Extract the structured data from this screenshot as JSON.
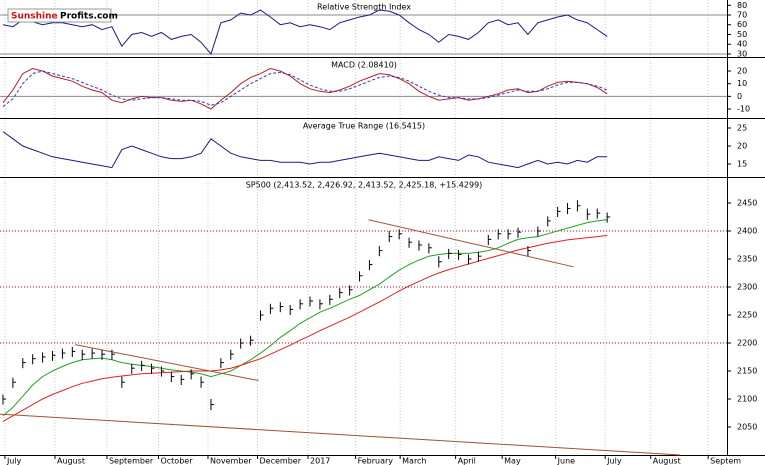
{
  "logo": [
    "Sunshine",
    "Profits.com"
  ],
  "chart_data": [
    {
      "type": "line",
      "title": "Relative Strength Index",
      "ylim": [
        26.9,
        85.4
      ],
      "yticks": [
        80,
        70,
        60,
        50,
        40,
        30
      ],
      "reference_lines": [
        70,
        30
      ],
      "series": [
        {
          "color": "#1a1a8c",
          "values": [
            60,
            58,
            65,
            63,
            60,
            62,
            62,
            60,
            58,
            60,
            55,
            58,
            38,
            50,
            52,
            48,
            52,
            45,
            48,
            50,
            42,
            30,
            62,
            65,
            72,
            70,
            75,
            68,
            60,
            62,
            58,
            60,
            58,
            55,
            62,
            65,
            68,
            70,
            75,
            74,
            70,
            62,
            55,
            50,
            42,
            50,
            48,
            45,
            52,
            62,
            65,
            60,
            62,
            50,
            62,
            65,
            68,
            70,
            65,
            62,
            55,
            48
          ]
        }
      ]
    },
    {
      "type": "line",
      "title": "MACD (2.08410)",
      "ylim": [
        -17.1,
        30.3
      ],
      "yticks": [
        20,
        10,
        0,
        -10
      ],
      "reference_lines": [
        0
      ],
      "series": [
        {
          "color": "#b22222",
          "values": [
            -5,
            5,
            18,
            22,
            20,
            16,
            14,
            12,
            8,
            5,
            3,
            -3,
            -5,
            -2,
            0,
            -1,
            -1,
            -3,
            -4,
            -3,
            -6,
            -10,
            -3,
            3,
            10,
            15,
            18,
            22,
            20,
            16,
            10,
            6,
            4,
            3,
            5,
            8,
            12,
            15,
            18,
            17,
            14,
            10,
            4,
            0,
            -3,
            -2,
            -1,
            -3,
            -2,
            0,
            2,
            5,
            6,
            3,
            4,
            8,
            11,
            12,
            11,
            10,
            7,
            2
          ]
        },
        {
          "color": "#3333cc",
          "dashed": true,
          "values": [
            -8,
            -2,
            10,
            18,
            20,
            18,
            16,
            14,
            11,
            8,
            5,
            1,
            -2,
            -3,
            -2,
            -1,
            -1,
            -2,
            -3,
            -3,
            -4,
            -7,
            -5,
            0,
            5,
            10,
            14,
            18,
            19,
            17,
            13,
            9,
            6,
            4,
            4,
            6,
            9,
            12,
            15,
            16,
            15,
            12,
            8,
            4,
            1,
            -1,
            -1,
            -2,
            -2,
            -1,
            1,
            3,
            5,
            4,
            4,
            6,
            9,
            11,
            11,
            10,
            8,
            5
          ]
        }
      ]
    },
    {
      "type": "line",
      "title": "Average True Range (16.5415)",
      "ylim": [
        11.4,
        27.5
      ],
      "yticks": [
        25,
        20,
        15
      ],
      "series": [
        {
          "color": "#1a1a8c",
          "values": [
            24,
            22,
            20,
            19,
            18,
            17,
            16.5,
            16,
            15.5,
            15,
            14.5,
            14,
            19,
            20,
            19,
            18,
            17,
            16.5,
            16.5,
            17,
            18,
            22,
            20,
            18,
            17,
            16.5,
            16,
            16,
            15.5,
            15.5,
            15.5,
            15,
            15.5,
            15.5,
            16,
            16.5,
            17,
            17.5,
            18,
            17.5,
            17,
            16.5,
            16,
            16,
            17,
            16.5,
            16,
            17.5,
            17,
            15.5,
            15,
            14.5,
            14,
            15,
            16,
            15,
            15.5,
            15,
            16,
            15.5,
            17,
            17
          ]
        }
      ]
    },
    {
      "type": "ohlc",
      "title": "SP500 (2,413.52, 2,426.92, 2,413.52, 2,425.18, +15.4299)",
      "ylim": [
        2000,
        2494.6
      ],
      "yticks": [
        2450,
        2400,
        2350,
        2300,
        2250,
        2200,
        2150,
        2100,
        2050
      ],
      "xlim": [
        -0.3,
        73.1
      ],
      "xticks": [
        {
          "value": 0.2,
          "label": "July"
        },
        {
          "value": 5.25,
          "label": "August"
        },
        {
          "value": 10.5,
          "label": "September"
        },
        {
          "value": 15.7,
          "label": "October"
        },
        {
          "value": 20.7,
          "label": "November"
        },
        {
          "value": 25.7,
          "label": "December"
        },
        {
          "value": 30.8,
          "label": "2017"
        },
        {
          "value": 35.6,
          "label": "February"
        },
        {
          "value": 40.1,
          "label": "March"
        },
        {
          "value": 45.7,
          "label": "April"
        },
        {
          "value": 50.4,
          "label": "May"
        },
        {
          "value": 55.8,
          "label": "June"
        },
        {
          "value": 60.8,
          "label": "July"
        },
        {
          "value": 65.4,
          "label": "August"
        },
        {
          "value": 71.2,
          "label": "Septem"
        }
      ],
      "reference_lines": [
        2400,
        2300,
        2200
      ],
      "reference_color": "#c00000",
      "color": "#000000",
      "high": [
        2108,
        2138,
        2173,
        2180,
        2183,
        2186,
        2190,
        2193,
        2188,
        2190,
        2188,
        2188,
        2140,
        2163,
        2168,
        2163,
        2158,
        2148,
        2143,
        2153,
        2140,
        2100,
        2173,
        2188,
        2208,
        2213,
        2258,
        2270,
        2273,
        2268,
        2278,
        2283,
        2278,
        2286,
        2298,
        2303,
        2328,
        2348,
        2373,
        2400,
        2403,
        2388,
        2383,
        2378,
        2355,
        2368,
        2366,
        2358,
        2363,
        2393,
        2403,
        2403,
        2406,
        2373,
        2408,
        2426,
        2443,
        2450,
        2455,
        2440,
        2440,
        2433
      ],
      "low": [
        2090,
        2120,
        2155,
        2162,
        2165,
        2168,
        2172,
        2175,
        2170,
        2172,
        2170,
        2170,
        2120,
        2145,
        2150,
        2145,
        2140,
        2130,
        2125,
        2135,
        2120,
        2080,
        2155,
        2170,
        2190,
        2195,
        2240,
        2252,
        2255,
        2250,
        2260,
        2265,
        2260,
        2268,
        2280,
        2285,
        2310,
        2330,
        2355,
        2380,
        2385,
        2370,
        2365,
        2360,
        2335,
        2350,
        2348,
        2340,
        2345,
        2375,
        2385,
        2385,
        2388,
        2355,
        2390,
        2408,
        2425,
        2430,
        2435,
        2420,
        2422,
        2415
      ],
      "close": [
        2100,
        2130,
        2165,
        2172,
        2175,
        2178,
        2182,
        2185,
        2180,
        2182,
        2180,
        2180,
        2130,
        2155,
        2160,
        2155,
        2150,
        2140,
        2135,
        2145,
        2130,
        2090,
        2165,
        2180,
        2200,
        2205,
        2250,
        2262,
        2265,
        2260,
        2270,
        2275,
        2270,
        2278,
        2290,
        2295,
        2320,
        2340,
        2365,
        2390,
        2395,
        2380,
        2375,
        2370,
        2345,
        2360,
        2358,
        2350,
        2355,
        2385,
        2395,
        2395,
        2398,
        2365,
        2400,
        2418,
        2435,
        2440,
        2445,
        2430,
        2432,
        2425
      ],
      "overlays": [
        {
          "color": "#22a022",
          "values": [
            2070,
            2085,
            2105,
            2125,
            2140,
            2150,
            2158,
            2165,
            2170,
            2172,
            2173,
            2170,
            2165,
            2162,
            2160,
            2158,
            2155,
            2152,
            2150,
            2148,
            2145,
            2140,
            2145,
            2150,
            2160,
            2170,
            2182,
            2195,
            2210,
            2222,
            2235,
            2245,
            2255,
            2262,
            2270,
            2278,
            2285,
            2295,
            2305,
            2318,
            2330,
            2340,
            2348,
            2355,
            2358,
            2360,
            2360,
            2360,
            2362,
            2365,
            2370,
            2378,
            2385,
            2388,
            2390,
            2395,
            2400,
            2405,
            2410,
            2415,
            2418,
            2420
          ]
        },
        {
          "color": "#e02020",
          "values": [
            2060,
            2070,
            2080,
            2090,
            2100,
            2108,
            2115,
            2122,
            2128,
            2132,
            2136,
            2139,
            2141,
            2143,
            2145,
            2146,
            2147,
            2148,
            2149,
            2150,
            2150,
            2150,
            2152,
            2155,
            2160,
            2166,
            2172,
            2180,
            2188,
            2196,
            2205,
            2213,
            2222,
            2230,
            2238,
            2246,
            2255,
            2264,
            2273,
            2283,
            2293,
            2302,
            2310,
            2318,
            2325,
            2331,
            2336,
            2341,
            2346,
            2351,
            2356,
            2361,
            2366,
            2370,
            2374,
            2378,
            2381,
            2384,
            2386,
            2388,
            2390,
            2392
          ]
        }
      ],
      "trendlines": [
        {
          "color": "#a0522d",
          "x": [
            7.3,
            25.8
          ],
          "values": [
            2197,
            2133
          ]
        },
        {
          "color": "#a0522d",
          "x": [
            36.9,
            57.6
          ],
          "values": [
            2420,
            2336
          ]
        },
        {
          "color": "#a0522d",
          "x": [
            -0.3,
            68.4
          ],
          "values": [
            2073,
            2000
          ]
        }
      ]
    }
  ]
}
